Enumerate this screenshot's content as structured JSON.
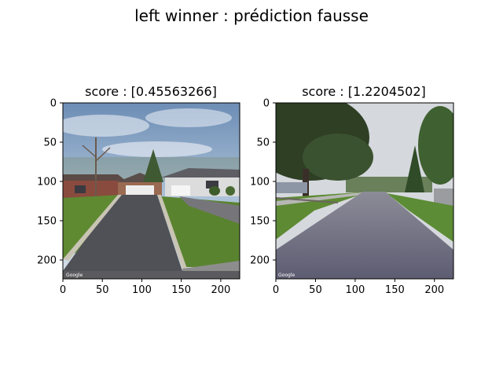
{
  "figure": {
    "suptitle": "left winner : prédiction fausse"
  },
  "chart_data": [
    {
      "type": "image",
      "title": "score : [0.45563266]",
      "image_size": [
        224,
        224
      ],
      "xlim": [
        0,
        224
      ],
      "ylim": [
        224,
        0
      ],
      "xticks": [
        "0",
        "50",
        "100",
        "150",
        "200"
      ],
      "yticks": [
        "0",
        "50",
        "100",
        "150",
        "200"
      ],
      "watermark": "Google",
      "scene": "suburban-house-driveway"
    },
    {
      "type": "image",
      "title": "score : [1.2204502]",
      "image_size": [
        224,
        224
      ],
      "xlim": [
        0,
        224
      ],
      "ylim": [
        224,
        0
      ],
      "xticks": [
        "0",
        "50",
        "100",
        "150",
        "200"
      ],
      "yticks": [
        "0",
        "50",
        "100",
        "150",
        "200"
      ],
      "watermark": "Google",
      "scene": "residential-street-with-trees"
    }
  ]
}
